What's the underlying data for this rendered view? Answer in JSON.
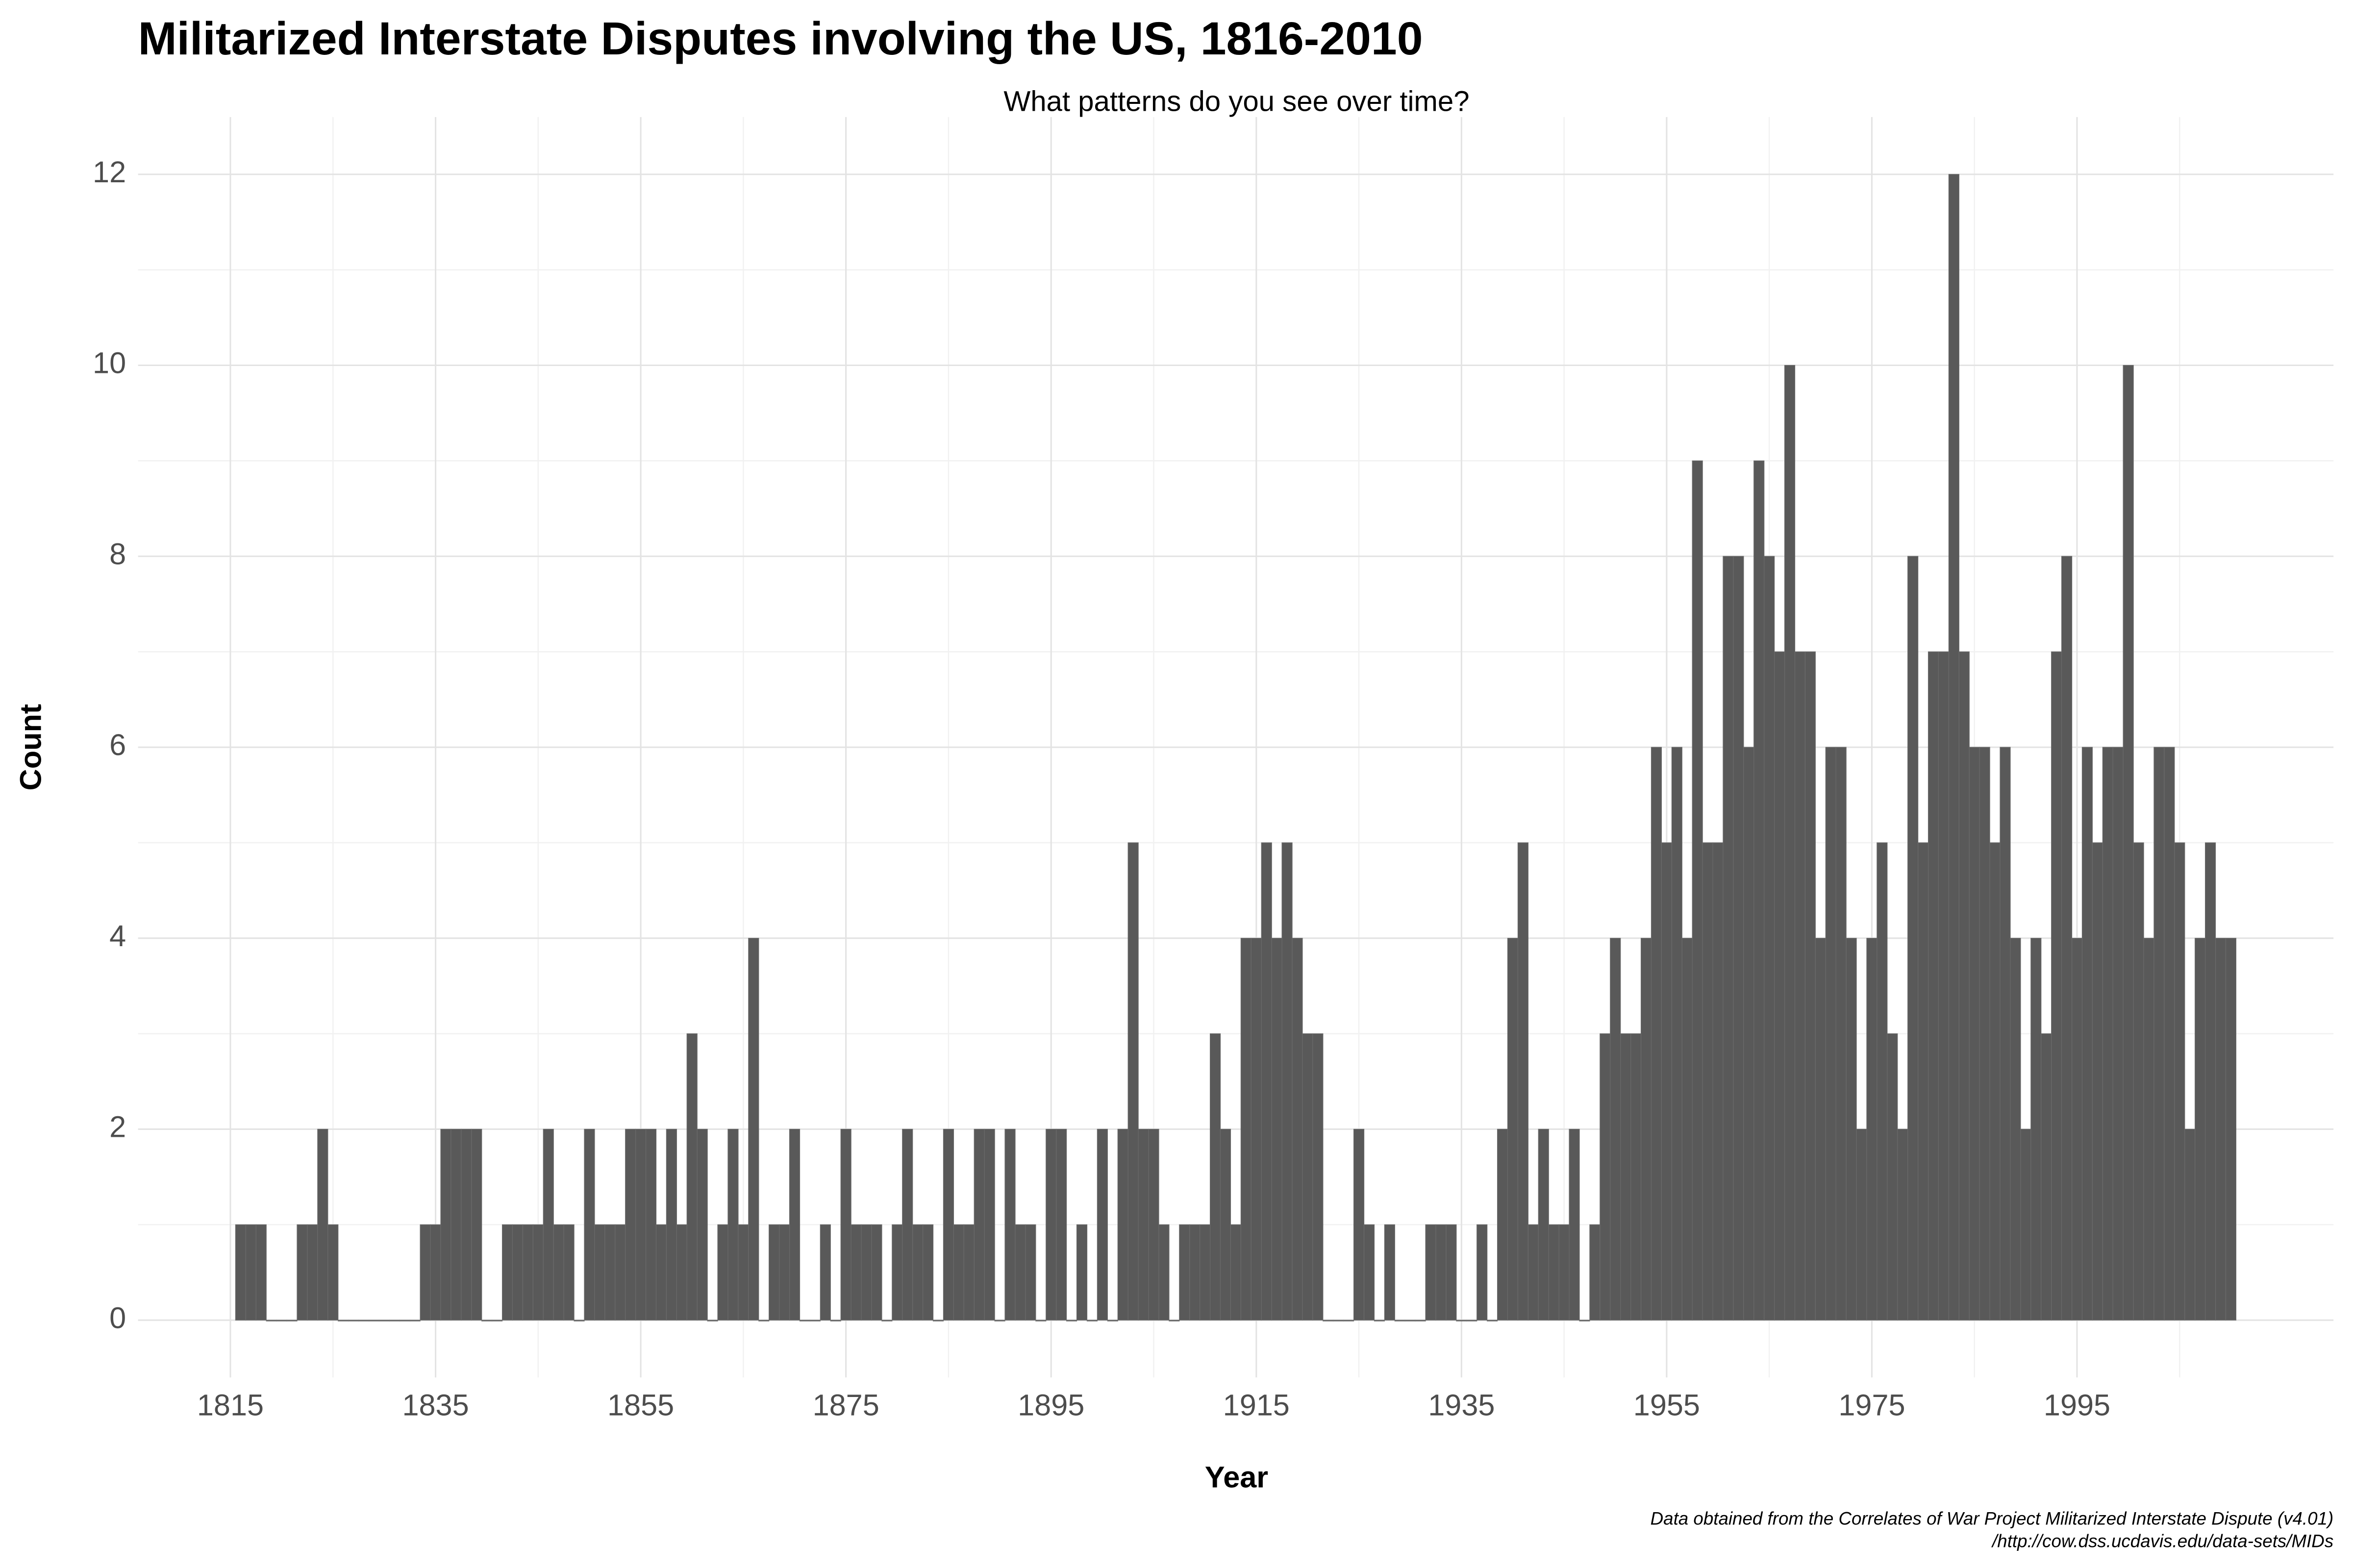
{
  "chart_data": {
    "type": "bar",
    "title": "Militarized Interstate Disputes involving the US, 1816-2010",
    "subtitle": "What patterns do you see over time?",
    "xlabel": "Year",
    "ylabel": "Count",
    "caption": [
      "Data obtained from the Correlates of War Project Militarized Interstate Dispute (v4.01)",
      "/http://cow.dss.ucdavis.edu/data-sets/MIDs"
    ],
    "color": "#595959",
    "x": [
      1816,
      1817,
      1818,
      1819,
      1820,
      1821,
      1822,
      1823,
      1824,
      1825,
      1826,
      1827,
      1828,
      1829,
      1830,
      1831,
      1832,
      1833,
      1834,
      1835,
      1836,
      1837,
      1838,
      1839,
      1840,
      1841,
      1842,
      1843,
      1844,
      1845,
      1846,
      1847,
      1848,
      1849,
      1850,
      1851,
      1852,
      1853,
      1854,
      1855,
      1856,
      1857,
      1858,
      1859,
      1860,
      1861,
      1862,
      1863,
      1864,
      1865,
      1866,
      1867,
      1868,
      1869,
      1870,
      1871,
      1872,
      1873,
      1874,
      1875,
      1876,
      1877,
      1878,
      1879,
      1880,
      1881,
      1882,
      1883,
      1884,
      1885,
      1886,
      1887,
      1888,
      1889,
      1890,
      1891,
      1892,
      1893,
      1894,
      1895,
      1896,
      1897,
      1898,
      1899,
      1900,
      1901,
      1902,
      1903,
      1904,
      1905,
      1906,
      1907,
      1908,
      1909,
      1910,
      1911,
      1912,
      1913,
      1914,
      1915,
      1916,
      1917,
      1918,
      1919,
      1920,
      1921,
      1922,
      1923,
      1924,
      1925,
      1926,
      1927,
      1928,
      1929,
      1930,
      1931,
      1932,
      1933,
      1934,
      1935,
      1936,
      1937,
      1938,
      1939,
      1940,
      1941,
      1942,
      1943,
      1944,
      1945,
      1946,
      1947,
      1948,
      1949,
      1950,
      1951,
      1952,
      1953,
      1954,
      1955,
      1956,
      1957,
      1958,
      1959,
      1960,
      1961,
      1962,
      1963,
      1964,
      1965,
      1966,
      1967,
      1968,
      1969,
      1970,
      1971,
      1972,
      1973,
      1974,
      1975,
      1976,
      1977,
      1978,
      1979,
      1980,
      1981,
      1982,
      1983,
      1984,
      1985,
      1986,
      1987,
      1988,
      1989,
      1990,
      1991,
      1992,
      1993,
      1994,
      1995,
      1996,
      1997,
      1998,
      1999,
      2000,
      2001,
      2002,
      2003,
      2004,
      2005,
      2006,
      2007,
      2008,
      2009,
      2010
    ],
    "values": [
      1,
      1,
      1,
      0,
      0,
      0,
      1,
      1,
      2,
      1,
      0,
      0,
      0,
      0,
      0,
      0,
      0,
      0,
      1,
      1,
      2,
      2,
      2,
      2,
      0,
      0,
      1,
      1,
      1,
      1,
      2,
      1,
      1,
      0,
      2,
      1,
      1,
      1,
      2,
      2,
      2,
      1,
      2,
      1,
      3,
      2,
      0,
      1,
      2,
      1,
      4,
      0,
      1,
      1,
      2,
      0,
      0,
      1,
      0,
      2,
      1,
      1,
      1,
      0,
      1,
      2,
      1,
      1,
      0,
      2,
      1,
      1,
      2,
      2,
      0,
      2,
      1,
      1,
      0,
      2,
      2,
      0,
      1,
      0,
      2,
      0,
      2,
      5,
      2,
      2,
      1,
      0,
      1,
      1,
      1,
      3,
      2,
      1,
      4,
      4,
      5,
      4,
      5,
      4,
      3,
      3,
      0,
      0,
      0,
      2,
      1,
      0,
      1,
      0,
      0,
      0,
      1,
      1,
      1,
      0,
      0,
      1,
      0,
      2,
      4,
      5,
      1,
      2,
      1,
      1,
      2,
      0,
      1,
      3,
      4,
      3,
      3,
      4,
      6,
      5,
      6,
      4,
      9,
      5,
      5,
      8,
      8,
      6,
      9,
      8,
      7,
      10,
      7,
      7,
      4,
      6,
      6,
      4,
      2,
      4,
      5,
      3,
      2,
      8,
      5,
      7,
      7,
      12,
      7,
      6,
      6,
      5,
      6,
      4,
      2,
      4,
      3,
      7,
      8,
      4,
      6,
      5,
      6,
      6,
      10,
      5,
      4,
      6,
      6,
      5,
      2,
      4,
      5,
      4,
      4
    ],
    "xlim": [
      1806,
      2020
    ],
    "xticks": [
      1815,
      1835,
      1855,
      1875,
      1895,
      1915,
      1935,
      1955,
      1975,
      1995
    ],
    "ylim": [
      -0.6,
      12.6
    ],
    "yticks": [
      0,
      2,
      4,
      6,
      8,
      10,
      12
    ],
    "grid": true
  }
}
